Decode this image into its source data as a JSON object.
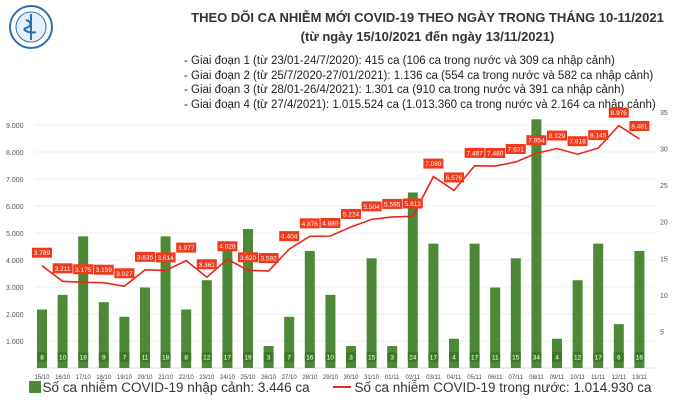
{
  "logo_text": "BỘ Y TẾ",
  "title_line1": "THEO DÕI CA NHIỄM MỚI COVID-19 THEO NGÀY TRONG THÁNG 10-11/2021",
  "title_line2": "(từ ngày 15/10/2021 đến ngày 13/11/2021)",
  "notes": [
    "- Giai đoạn 1 (từ 23/01-24/7/2020): 415 ca (106 ca trong nước và 309 ca nhập cảnh)",
    "- Giai đoạn 2 (từ 25/7/2020-27/01/2021): 1.136 ca (554 ca trong nước và 582 ca nhập cảnh)",
    "- Giai đoạn 3 (từ 28/01-26/4/2021): 1.301 ca (910 ca trong nước và 391 ca nhập cảnh)",
    "- Giai đoạn 4 (từ 27/4/2021): 1.015.524 ca (1.013.360 ca trong nước và 2.164 ca nhập cảnh)"
  ],
  "chart_data": {
    "type": "bar+line",
    "categories": [
      "15/10",
      "16/10",
      "17/10",
      "18/10",
      "19/10",
      "20/10",
      "21/10",
      "22/10",
      "23/10",
      "24/10",
      "25/10",
      "26/10",
      "27/10",
      "28/10",
      "29/10",
      "30/10",
      "31/10",
      "01/11",
      "02/11",
      "03/11",
      "04/11",
      "05/11",
      "06/11",
      "07/11",
      "08/11",
      "09/11",
      "10/11",
      "11/11",
      "12/11",
      "13/11"
    ],
    "series": [
      {
        "name": "Số ca nhiễm COVID-19 nhập cảnh: 3.446 ca",
        "type": "bar",
        "axis": "right",
        "color": "#4e8a35",
        "values": [
          8,
          10,
          18,
          9,
          7,
          11,
          18,
          8,
          12,
          17,
          19,
          3,
          7,
          16,
          10,
          3,
          15,
          3,
          24,
          17,
          4,
          17,
          11,
          15,
          34,
          4,
          12,
          17,
          6,
          16
        ]
      },
      {
        "name": "Số ca nhiễm COVID-19 trong nước: 1.014.930 ca",
        "type": "line",
        "axis": "left",
        "color": "#e8271b",
        "values": [
          3789,
          3211,
          3175,
          3159,
          3027,
          3635,
          3614,
          3977,
          3361,
          4028,
          3620,
          3592,
          4404,
          4876,
          4889,
          5224,
          5504,
          5595,
          5613,
          7089,
          6576,
          7487,
          7480,
          7631,
          7954,
          8129,
          7918,
          8145,
          8976,
          8481
        ]
      }
    ],
    "left_ticks": [
      "1.000",
      "2.000",
      "3.000",
      "4.000",
      "5.000",
      "6.000",
      "7.000",
      "8.000",
      "9.000"
    ],
    "right_ticks": [
      "5",
      "10",
      "15",
      "20",
      "25",
      "30",
      "35"
    ],
    "ylim_left": [
      0,
      9400
    ],
    "ylim_right": [
      0,
      35
    ],
    "grid": true,
    "legend": "bottom"
  }
}
